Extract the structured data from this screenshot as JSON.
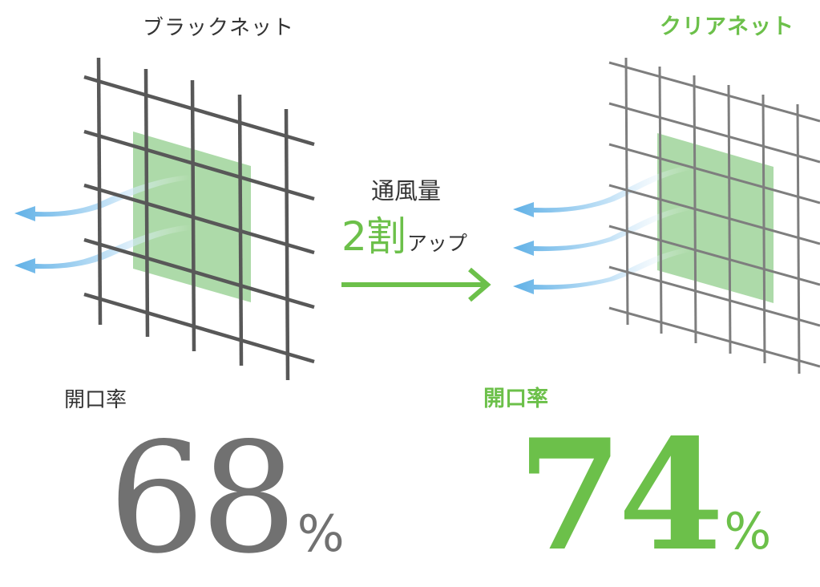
{
  "left_panel": {
    "title": "ブラックネット",
    "ratio_label": "開口率",
    "ratio_value": "68",
    "ratio_unit": "%"
  },
  "right_panel": {
    "title": "クリアネット",
    "ratio_label": "開口率",
    "ratio_value": "74",
    "ratio_unit": "%"
  },
  "center": {
    "caption": "通風量",
    "boost_value": "2割",
    "boost_suffix": "アップ"
  },
  "colors": {
    "accent_green": "#6cc04a",
    "mesh_dark": "#585858",
    "mesh_light": "#7e7e7e",
    "window_green": "#9fd39a",
    "airflow_blue": "#6db5e8",
    "text_dark": "#333333",
    "number_gray": "#717171"
  }
}
